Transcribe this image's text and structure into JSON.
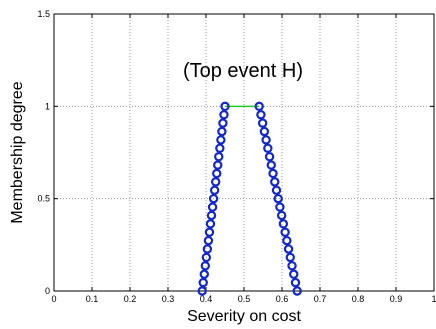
{
  "chart_data": {
    "type": "line",
    "xlabel": "Severity on cost",
    "ylabel": "Membership degree",
    "annotation": "(Top event H)",
    "xlim": [
      0,
      1
    ],
    "ylim": [
      0,
      1.5
    ],
    "x_ticks": [
      0,
      0.1,
      0.2,
      0.3,
      0.4,
      0.5,
      0.6,
      0.7,
      0.8,
      0.9,
      1
    ],
    "x_tick_labels": [
      "0",
      "0.1",
      "0.2",
      "0.3",
      "0.4",
      "0.5",
      "0.6",
      "0.7",
      "0.8",
      "0.9",
      "1"
    ],
    "y_ticks": [
      0,
      0.5,
      1,
      1.5
    ],
    "y_tick_labels": [
      "0",
      "0.5",
      "1",
      "1.5"
    ],
    "grid": true,
    "series": [
      {
        "style": "circle-markers",
        "color": "#1428c8",
        "x": [
          0.39,
          0.3927,
          0.3955,
          0.3982,
          0.4009,
          0.4036,
          0.4064,
          0.4091,
          0.4118,
          0.4145,
          0.4173,
          0.42,
          0.4227,
          0.4255,
          0.4282,
          0.4309,
          0.4336,
          0.4364,
          0.4391,
          0.4418,
          0.4445,
          0.4473,
          0.45,
          0.54,
          0.5445,
          0.5491,
          0.5536,
          0.5582,
          0.5627,
          0.5673,
          0.5718,
          0.5764,
          0.5809,
          0.5855,
          0.59,
          0.5945,
          0.5991,
          0.6036,
          0.6082,
          0.6127,
          0.6173,
          0.6218,
          0.6264,
          0.6309,
          0.6355,
          0.64
        ],
        "y": [
          0,
          0.0455,
          0.0909,
          0.1364,
          0.1818,
          0.2273,
          0.2727,
          0.3182,
          0.3636,
          0.4091,
          0.4545,
          0.5,
          0.5455,
          0.5909,
          0.6364,
          0.6818,
          0.7273,
          0.7727,
          0.8182,
          0.8636,
          0.9091,
          0.9545,
          1,
          1,
          0.9545,
          0.9091,
          0.8636,
          0.8182,
          0.7727,
          0.7273,
          0.6818,
          0.6364,
          0.5909,
          0.5455,
          0.5,
          0.4545,
          0.4091,
          0.3636,
          0.3182,
          0.2727,
          0.2273,
          0.1818,
          0.1364,
          0.0909,
          0.0455,
          0
        ]
      },
      {
        "style": "line",
        "color": "#22cc22",
        "x": [
          0.45,
          0.54
        ],
        "y": [
          1,
          1
        ]
      }
    ]
  }
}
